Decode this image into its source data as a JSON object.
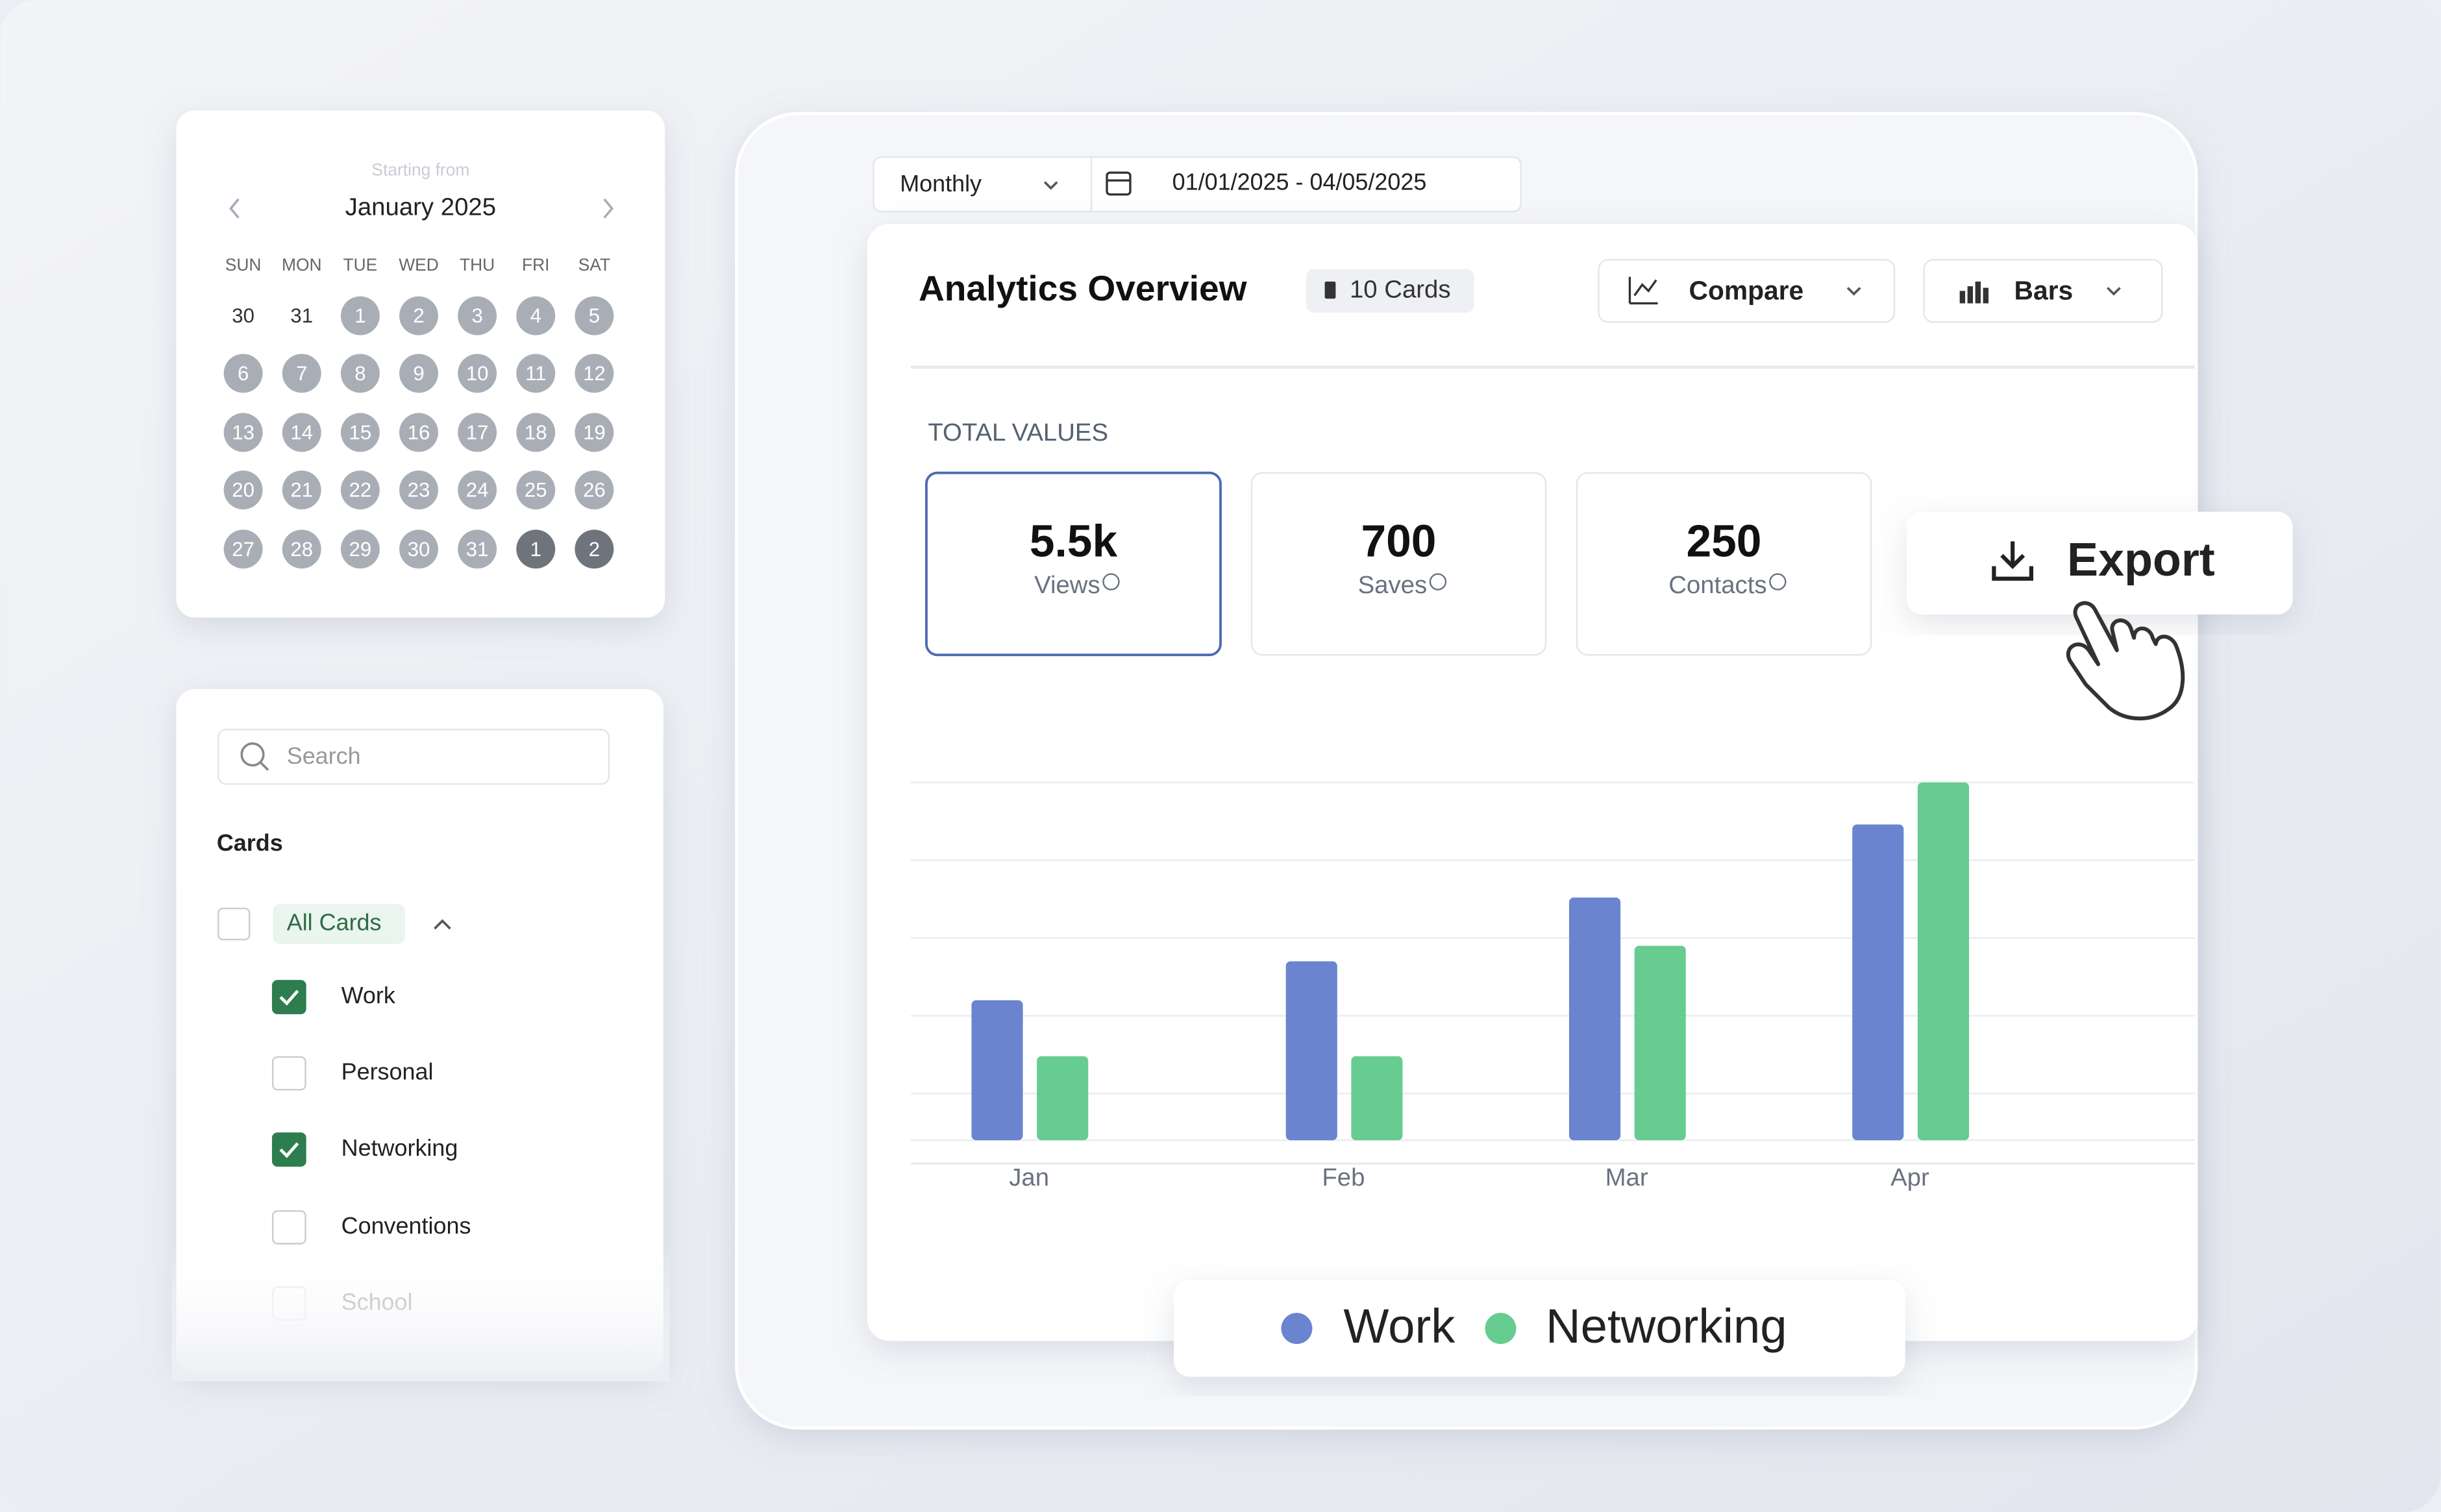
{
  "calendar": {
    "caption": "Starting from",
    "month": "January 2025",
    "weekdays": [
      "SUN",
      "MON",
      "TUE",
      "WED",
      "THU",
      "FRI",
      "SAT"
    ],
    "days": [
      "30",
      "31",
      "1",
      "2",
      "3",
      "4",
      "5",
      "6",
      "7",
      "8",
      "9",
      "10",
      "11",
      "12",
      "13",
      "14",
      "15",
      "16",
      "17",
      "18",
      "19",
      "20",
      "21",
      "22",
      "23",
      "24",
      "25",
      "26",
      "27",
      "28",
      "29",
      "30",
      "31",
      "1",
      "2"
    ]
  },
  "filters": {
    "search_placeholder": "Search",
    "heading": "Cards",
    "all_label": "All Cards",
    "items": [
      {
        "label": "Work",
        "checked": true
      },
      {
        "label": "Personal",
        "checked": false
      },
      {
        "label": "Networking",
        "checked": true
      },
      {
        "label": "Conventions",
        "checked": false
      },
      {
        "label": "School",
        "checked": false
      }
    ]
  },
  "toolbar": {
    "period": "Monthly",
    "date_range": "01/01/2025 - 04/05/2025"
  },
  "analytics": {
    "title": "Analytics Overview",
    "badge": "10 Cards",
    "compare": "Compare",
    "view": "Bars",
    "section": "TOTAL VALUES",
    "stats": [
      {
        "value": "5.5k",
        "label": "Views"
      },
      {
        "value": "700",
        "label": "Saves"
      },
      {
        "value": "250",
        "label": "Contacts"
      }
    ],
    "export": "Export",
    "chart": {
      "type": "bar",
      "categories": [
        "Jan",
        "Feb",
        "Mar",
        "Apr"
      ],
      "series": [
        {
          "name": "Work",
          "color": "#6b84d0",
          "values": [
            90,
            115,
            156,
            203
          ]
        },
        {
          "name": "Networking",
          "color": "#66cc90",
          "values": [
            54,
            54,
            125,
            230
          ]
        }
      ],
      "ylim": [
        0,
        240
      ],
      "yticks": [
        0,
        30,
        80,
        130,
        180,
        230
      ],
      "grid": true
    }
  }
}
